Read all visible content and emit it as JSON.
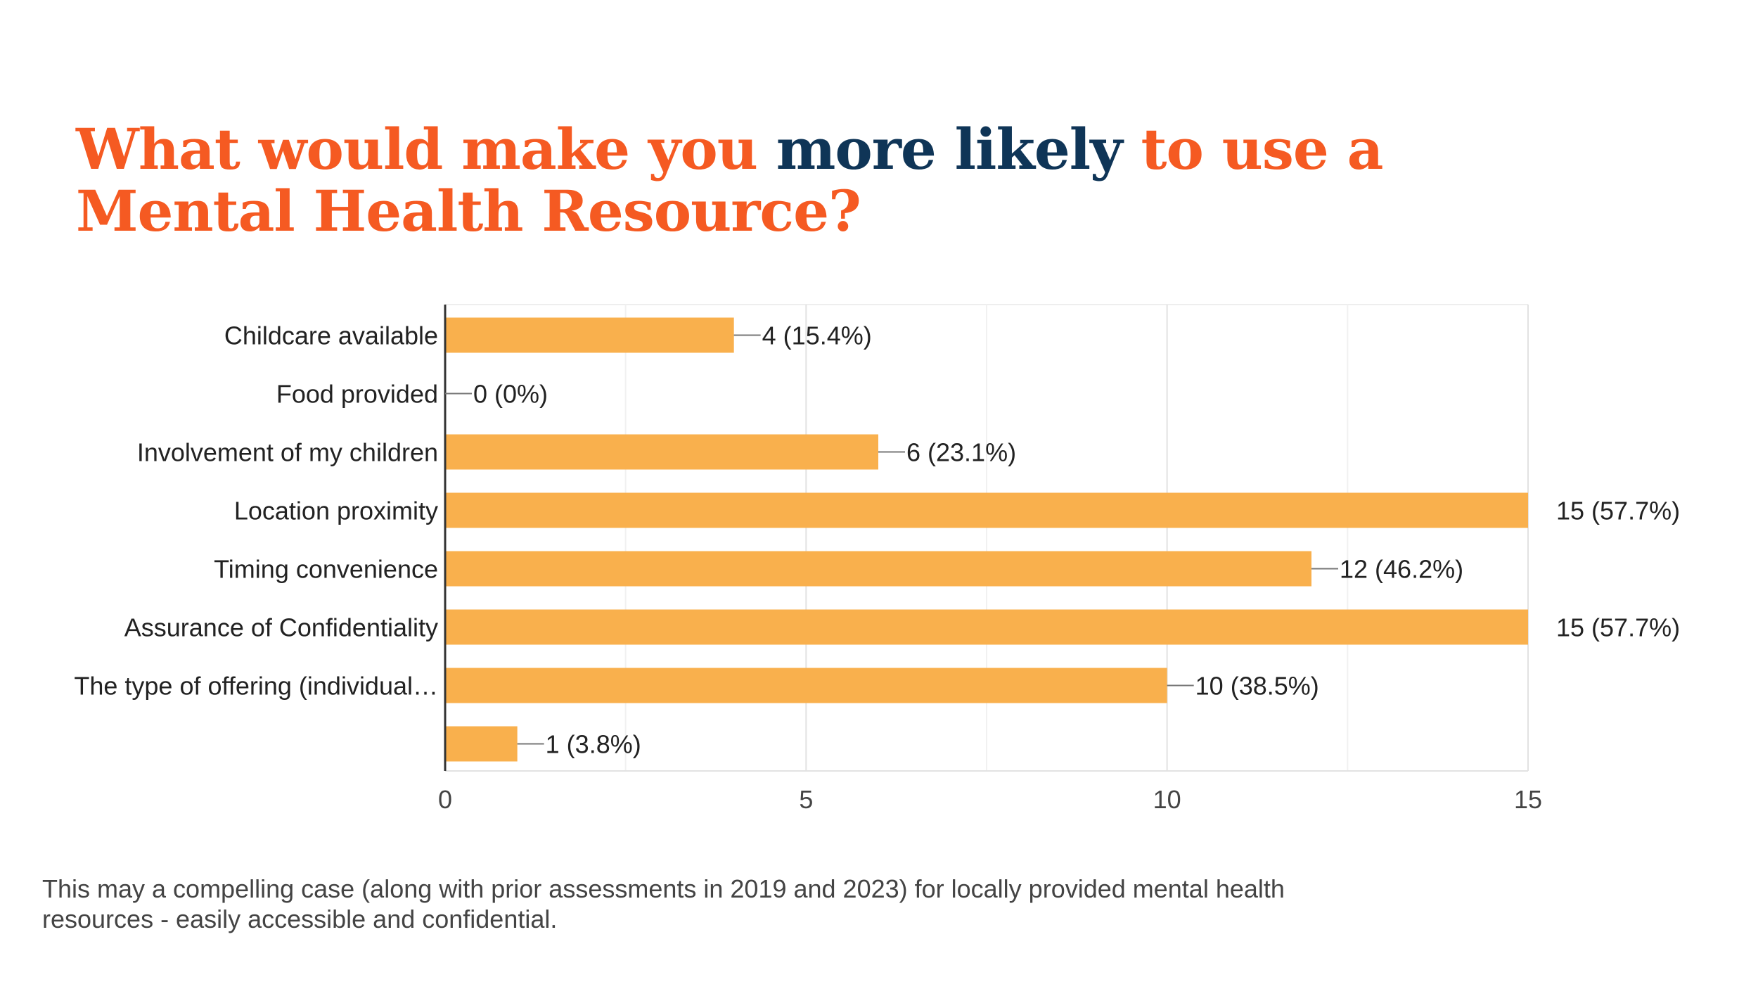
{
  "slide": {
    "title_part1": "What would make you ",
    "title_highlight": "more likely",
    "title_part2": " to use a Mental Health Resource?",
    "footnote": "This may a compelling case (along with prior assessments in 2019 and 2023) for locally provided mental health resources - easily accessible and confidential."
  },
  "colors": {
    "title": "#f55a22",
    "title_highlight": "#0f3557",
    "bar": "#f9b04d"
  },
  "chart_data": {
    "type": "bar",
    "orientation": "horizontal",
    "title": "",
    "xlabel": "",
    "ylabel": "",
    "xlim": [
      0,
      15
    ],
    "x_ticks": [
      0,
      5,
      10,
      15
    ],
    "grid": true,
    "categories": [
      "Childcare available",
      "Food provided",
      "Involvement of my children",
      "Location proximity",
      "Timing convenience",
      "Assurance of Confidentiality",
      "The type of offering (individual…",
      ""
    ],
    "values": [
      4,
      0,
      6,
      15,
      12,
      15,
      10,
      1
    ],
    "value_labels": [
      "4 (15.4%)",
      "0 (0%)",
      "6 (23.1%)",
      "15 (57.7%)",
      "12 (46.2%)",
      "15 (57.7%)",
      "10 (38.5%)",
      "1 (3.8%)"
    ]
  }
}
